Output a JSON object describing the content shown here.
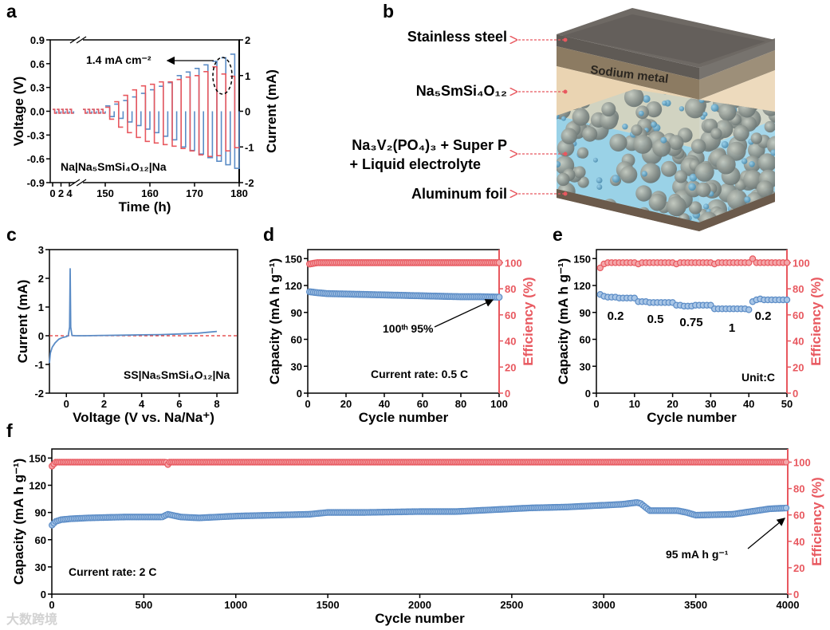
{
  "panel_labels": [
    "a",
    "b",
    "c",
    "d",
    "e",
    "f"
  ],
  "diagram_b": {
    "labels": {
      "steel": "Stainless steel",
      "electrolyte": "Na₅SmSi₄O₁₂",
      "cathode_line1": "Na₃V₂(PO₄)₃ + Super P",
      "cathode_line2": "+ Liquid electrolyte",
      "foil": "Aluminum foil",
      "sodium": "Sodium metal"
    },
    "colors": {
      "steel": "#5f5a55",
      "sodium": "#8c7b62",
      "electrolyte": "#ead4b2",
      "cathode": "#9fd3e6",
      "foil": "#6b5a4b",
      "arrow": "#e8585f"
    }
  },
  "colors": {
    "blue": "#5b8cc6",
    "blue_fill": "#a9c6e6",
    "red": "#e8585f",
    "red_fill": "#f4a7aa",
    "axis": "#000000"
  },
  "watermark": "大数跨境",
  "chart_data": [
    {
      "id": "a",
      "type": "line",
      "xlabel": "Time (h)",
      "ylabel": "Voltage (V)",
      "y2label": "Current (mA)",
      "xticks": [
        "0",
        "2",
        "4",
        "150",
        "160",
        "170",
        "180"
      ],
      "yticks": [
        "-0.9",
        "-0.6",
        "-0.3",
        "0.0",
        "0.3",
        "0.6",
        "0.9"
      ],
      "y2ticks": [
        "-2",
        "-1",
        "0",
        "1",
        "2"
      ],
      "ylim": [
        -0.9,
        0.9
      ],
      "y2lim": [
        -2,
        2
      ],
      "x_break": [
        5,
        145
      ],
      "low_rate": {
        "start_h": [
          0,
          1,
          2,
          3,
          4,
          145,
          146,
          147,
          148,
          149
        ],
        "period_h": 1,
        "current_mA": 0.05,
        "voltage_V": 0.025
      },
      "cycles": {
        "start_h": [
          150,
          152,
          154,
          156,
          158,
          160,
          162,
          164,
          166,
          168,
          170,
          172,
          174,
          176,
          178
        ],
        "period_h": 2,
        "current_mA": [
          0.15,
          0.2,
          0.3,
          0.4,
          0.5,
          0.6,
          0.7,
          0.8,
          1.0,
          1.1,
          1.2,
          1.3,
          1.4,
          1.5,
          1.6
        ],
        "voltage_pos_V": [
          0.05,
          0.12,
          0.2,
          0.27,
          0.32,
          0.34,
          0.37,
          0.37,
          0.4,
          0.43,
          0.45,
          0.5,
          0.56,
          0.47,
          0.44
        ],
        "voltage_neg_V": [
          -0.1,
          -0.2,
          -0.27,
          -0.33,
          -0.38,
          -0.4,
          -0.42,
          -0.44,
          -0.47,
          -0.5,
          -0.55,
          -0.57,
          -0.56,
          -0.5,
          -0.46
        ]
      },
      "annotations": {
        "highlight": "1.4 mA cm⁻²",
        "cell": "Na|Na₅SmSi₄O₁₂|Na"
      }
    },
    {
      "id": "c",
      "type": "line",
      "xlabel": "Voltage (V vs. Na/Na⁺)",
      "ylabel": "Current (mA)",
      "xticks": [
        "0",
        "2",
        "4",
        "6",
        "8"
      ],
      "yticks": [
        "-2",
        "-1",
        "0",
        "1",
        "2",
        "3"
      ],
      "xlim": [
        -0.9,
        9.1
      ],
      "ylim": [
        -2,
        3
      ],
      "x": [
        -0.9,
        -0.85,
        -0.75,
        -0.6,
        -0.4,
        -0.2,
        0,
        0.1,
        0.17,
        0.2,
        0.23,
        0.3,
        0.5,
        1,
        2,
        3,
        4,
        5,
        6,
        7,
        7.5,
        8
      ],
      "y": [
        -0.95,
        -0.6,
        -0.4,
        -0.25,
        -0.12,
        -0.06,
        -0.03,
        0,
        0.3,
        2.35,
        0.3,
        0.01,
        0,
        0,
        0.01,
        0.02,
        0.03,
        0.04,
        0.06,
        0.09,
        0.12,
        0.15
      ],
      "reference_line_y": 0,
      "annotations": {
        "cell": "SS|Na₅SmSi₄O₁₂|Na"
      }
    },
    {
      "id": "d",
      "type": "scatter",
      "xlabel": "Cycle number",
      "ylabel": "Capacity (mA h g⁻¹)",
      "y2label": "Efficiency (%)",
      "xticks": [
        "0",
        "20",
        "40",
        "60",
        "80",
        "100"
      ],
      "yticks": [
        "0",
        "30",
        "60",
        "90",
        "120",
        "150"
      ],
      "y2ticks": [
        "0",
        "20",
        "40",
        "60",
        "80",
        "100"
      ],
      "xlim": [
        0,
        100
      ],
      "ylim": [
        0,
        160
      ],
      "y2lim": [
        0,
        110
      ],
      "x": [
        1,
        5,
        10,
        20,
        30,
        40,
        50,
        60,
        70,
        80,
        90,
        100
      ],
      "capacity": [
        113,
        112,
        111,
        110.5,
        110,
        109.5,
        109,
        108.5,
        108,
        107.5,
        107.5,
        107
      ],
      "efficiency": [
        99,
        100,
        100,
        100,
        100,
        100,
        100,
        100,
        100,
        100,
        100,
        100
      ],
      "annotations": {
        "retention": "100ᵗʰ 95%",
        "rate": "Current rate: 0.5 C"
      }
    },
    {
      "id": "e",
      "type": "scatter",
      "xlabel": "Cycle number",
      "ylabel": "Capacity (mA h g⁻¹)",
      "y2label": "Efficiency (%)",
      "xticks": [
        "0",
        "10",
        "20",
        "30",
        "40",
        "50"
      ],
      "yticks": [
        "0",
        "30",
        "60",
        "90",
        "120",
        "150"
      ],
      "y2ticks": [
        "0",
        "20",
        "40",
        "60",
        "80",
        "100"
      ],
      "xlim": [
        0,
        50
      ],
      "ylim": [
        0,
        160
      ],
      "y2lim": [
        0,
        110
      ],
      "x_start": 1,
      "capacity": [
        110,
        108,
        107,
        107,
        107,
        106,
        106,
        106,
        106,
        106,
        102,
        102,
        102,
        101,
        101,
        101,
        101,
        101,
        101,
        101,
        98,
        98,
        97,
        97,
        97,
        98,
        98,
        98,
        98,
        98,
        94,
        94,
        94,
        94,
        94,
        94,
        94,
        94,
        94,
        93,
        102,
        104,
        105,
        104,
        104,
        104,
        104,
        104,
        104,
        104
      ],
      "efficiency": [
        96,
        99,
        100,
        100,
        100,
        100,
        100,
        100,
        100,
        100,
        99,
        100,
        100,
        100,
        100,
        100,
        100,
        100,
        100,
        100,
        99,
        100,
        100,
        100,
        100,
        100,
        100,
        100,
        100,
        100,
        99,
        100,
        100,
        100,
        100,
        100,
        100,
        100,
        100,
        100,
        103,
        100,
        100,
        100,
        100,
        100,
        100,
        100,
        100,
        100
      ],
      "rate_labels": [
        "0.2",
        "0.5",
        "0.75",
        "1",
        "0.2"
      ],
      "annotations": {
        "unit": "Unit:C"
      }
    },
    {
      "id": "f",
      "type": "scatter",
      "xlabel": "Cycle number",
      "ylabel": "Capacity (mA h g⁻¹)",
      "y2label": "Efficiency (%)",
      "xticks": [
        "0",
        "500",
        "1000",
        "1500",
        "2000",
        "2500",
        "3000",
        "3500",
        "4000"
      ],
      "yticks": [
        "0",
        "30",
        "60",
        "90",
        "120",
        "150"
      ],
      "y2ticks": [
        "0",
        "20",
        "40",
        "60",
        "80",
        "100"
      ],
      "xlim": [
        0,
        4000
      ],
      "ylim": [
        0,
        160
      ],
      "y2lim": [
        0,
        110
      ],
      "x": [
        1,
        20,
        50,
        100,
        200,
        400,
        600,
        630,
        700,
        800,
        1000,
        1200,
        1400,
        1500,
        1700,
        2000,
        2200,
        2400,
        2600,
        2800,
        3000,
        3100,
        3180,
        3200,
        3250,
        3400,
        3450,
        3500,
        3700,
        3800,
        3900,
        4000
      ],
      "capacity": [
        76,
        80,
        82,
        83,
        84,
        85,
        85,
        88,
        85,
        84,
        86,
        87,
        88,
        90,
        90,
        91,
        91,
        93,
        95,
        96,
        98,
        99,
        101,
        100,
        92,
        92,
        90,
        87,
        88,
        91,
        94,
        95
      ],
      "efficiency_x": [
        1,
        20,
        620,
        630,
        640,
        4000
      ],
      "efficiency": [
        97,
        100,
        100,
        98,
        100,
        100
      ],
      "annotations": {
        "final": "95 mA h g⁻¹",
        "rate": "Current rate: 2 C"
      }
    }
  ]
}
